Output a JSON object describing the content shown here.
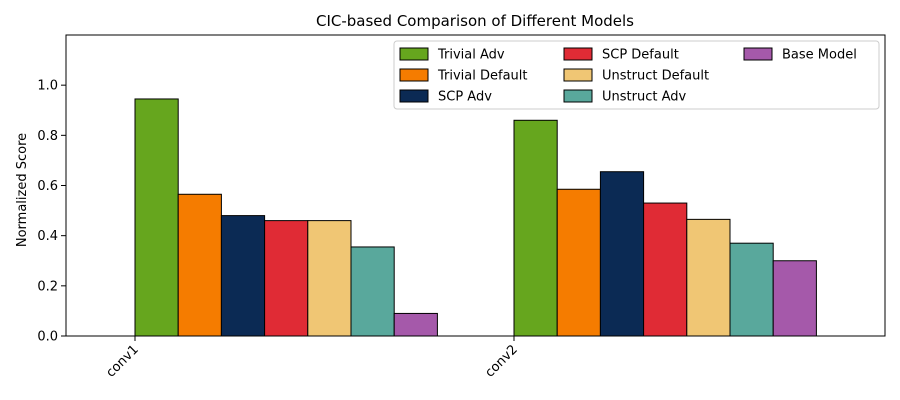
{
  "chart_data": {
    "type": "bar",
    "title": "CIC-based Comparison of Different Models",
    "xlabel": "",
    "ylabel": "Normalized Score",
    "categories": [
      "conv1",
      "conv2"
    ],
    "ylim": [
      0,
      1.2
    ],
    "yticks": [
      "0.0",
      "0.2",
      "0.4",
      "0.6",
      "0.8",
      "1.0"
    ],
    "grid": false,
    "legend_position": "top-right",
    "series": [
      {
        "name": "Trivial Adv",
        "color": "#66a61e",
        "values": [
          0.945,
          0.86
        ]
      },
      {
        "name": "Trivial Default",
        "color": "#f57c00",
        "values": [
          0.565,
          0.585
        ]
      },
      {
        "name": "SCP Adv",
        "color": "#0b2a54",
        "values": [
          0.48,
          0.655
        ]
      },
      {
        "name": "SCP Default",
        "color": "#e02b35",
        "values": [
          0.46,
          0.53
        ]
      },
      {
        "name": "Unstruct Default",
        "color": "#f0c674",
        "values": [
          0.46,
          0.465
        ]
      },
      {
        "name": "Unstruct Adv",
        "color": "#59a89c",
        "values": [
          0.355,
          0.37
        ]
      },
      {
        "name": "Base Model",
        "color": "#a559aa",
        "values": [
          0.09,
          0.3
        ]
      }
    ]
  }
}
